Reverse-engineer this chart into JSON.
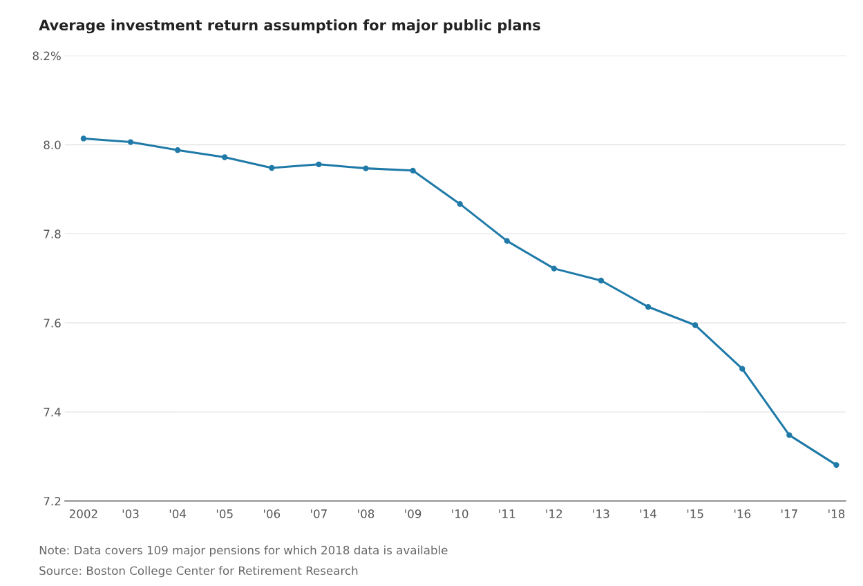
{
  "chart_data": {
    "type": "line",
    "title": "Average investment return assumption for major public plans",
    "x": [
      2002,
      2003,
      2004,
      2005,
      2006,
      2007,
      2008,
      2009,
      2010,
      2011,
      2012,
      2013,
      2014,
      2015,
      2016,
      2017,
      2018
    ],
    "series": [
      {
        "color": "#1f7aa8",
        "values": [
          8.014,
          8.006,
          7.988,
          7.972,
          7.948,
          7.956,
          7.947,
          7.942,
          7.867,
          7.784,
          7.722,
          7.695,
          7.636,
          7.595,
          7.497,
          7.348,
          7.281
        ]
      }
    ],
    "xlim": [
      2001.6,
      2018.2
    ],
    "xticks": [
      2002,
      {
        "value": 2003,
        "label": "'03"
      },
      {
        "value": 2004,
        "label": "'04"
      },
      {
        "value": 2005,
        "label": "'05"
      },
      {
        "value": 2006,
        "label": "'06"
      },
      {
        "value": 2007,
        "label": "'07"
      },
      {
        "value": 2008,
        "label": "'08"
      },
      {
        "value": 2009,
        "label": "'09"
      },
      {
        "value": 2010,
        "label": "'10"
      },
      {
        "value": 2011,
        "label": "'11"
      },
      {
        "value": 2012,
        "label": "'12"
      },
      {
        "value": 2013,
        "label": "'13"
      },
      {
        "value": 2014,
        "label": "'14"
      },
      {
        "value": 2015,
        "label": "'15"
      },
      {
        "value": 2016,
        "label": "'16"
      },
      {
        "value": 2017,
        "label": "'17"
      },
      {
        "value": 2018,
        "label": "'18"
      }
    ],
    "ylim": [
      7.2,
      8.2
    ],
    "yticks": [
      7.2,
      7.4,
      7.6,
      7.8,
      {
        "value": 8.0,
        "label": "8.0"
      },
      {
        "value": 8.2,
        "label": "8.2%"
      }
    ],
    "grid": "y",
    "marker": "circle",
    "line_style": "solid",
    "legend": false,
    "annotations": [
      "Note: Data covers 109 major pensions for which 2018 data is available",
      "Source: Boston College Center for Retirement Research"
    ]
  }
}
